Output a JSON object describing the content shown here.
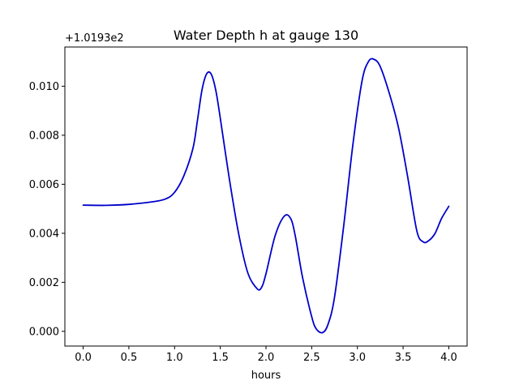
{
  "chart_data": {
    "type": "line",
    "title": "Water Depth h at gauge 130",
    "xlabel": "hours",
    "ylabel": "",
    "y_offset_label": "+1.0193e2",
    "xlim": [
      -0.2,
      4.2
    ],
    "ylim": [
      -0.0006,
      0.0116
    ],
    "x_ticks": [
      0.0,
      0.5,
      1.0,
      1.5,
      2.0,
      2.5,
      3.0,
      3.5,
      4.0
    ],
    "x_tick_labels": [
      "0.0",
      "0.5",
      "1.0",
      "1.5",
      "2.0",
      "2.5",
      "3.0",
      "3.5",
      "4.0"
    ],
    "y_ticks": [
      0.0,
      0.002,
      0.004,
      0.006,
      0.008,
      0.01
    ],
    "y_tick_labels": [
      "0.000",
      "0.002",
      "0.004",
      "0.006",
      "0.008",
      "0.010"
    ],
    "grid": false,
    "line_color": "#0000cc",
    "series": [
      {
        "x": [
          0.0,
          0.25,
          0.5,
          0.75,
          0.9,
          1.0,
          1.1,
          1.2,
          1.25,
          1.3,
          1.35,
          1.4,
          1.45,
          1.5,
          1.6,
          1.7,
          1.8,
          1.9,
          1.95,
          2.0,
          2.1,
          2.2,
          2.27,
          2.32,
          2.4,
          2.5,
          2.55,
          2.62,
          2.68,
          2.75,
          2.85,
          2.95,
          3.05,
          3.12,
          3.18,
          3.25,
          3.35,
          3.45,
          3.55,
          3.65,
          3.72,
          3.78,
          3.85,
          3.92,
          4.0
        ],
        "y": [
          0.00515,
          0.00514,
          0.00518,
          0.00528,
          0.0054,
          0.00567,
          0.00633,
          0.00745,
          0.0086,
          0.00985,
          0.0105,
          0.0105,
          0.00985,
          0.0087,
          0.0062,
          0.004,
          0.0024,
          0.00175,
          0.00178,
          0.00235,
          0.0039,
          0.0047,
          0.0046,
          0.0039,
          0.0022,
          0.0006,
          0.0001,
          -5e-05,
          0.0003,
          0.0014,
          0.0043,
          0.0076,
          0.0102,
          0.011,
          0.0111,
          0.0108,
          0.0097,
          0.0083,
          0.0063,
          0.0041,
          0.00365,
          0.0037,
          0.004,
          0.0046,
          0.0051
        ]
      }
    ]
  }
}
